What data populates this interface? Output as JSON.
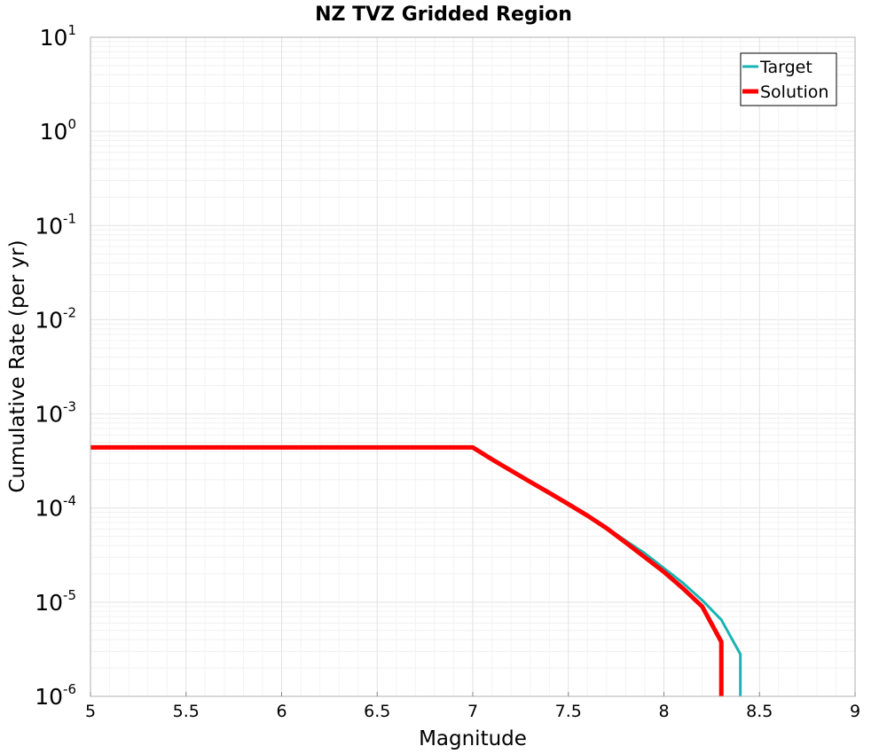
{
  "chart_data": {
    "type": "line",
    "title": "NZ TVZ Gridded Region",
    "xlabel": "Magnitude",
    "ylabel": "Cumulative Rate (per yr)",
    "xlim": [
      5,
      9
    ],
    "ylim": [
      1e-06,
      10
    ],
    "yscale": "log",
    "xticks": [
      "5",
      "5.5",
      "6",
      "6.5",
      "7",
      "7.5",
      "8",
      "8.5",
      "9"
    ],
    "yticks": [
      {
        "base": "10",
        "exp": "1",
        "value": 10
      },
      {
        "base": "10",
        "exp": "0",
        "value": 1
      },
      {
        "base": "10",
        "exp": "-1",
        "value": 0.1
      },
      {
        "base": "10",
        "exp": "-2",
        "value": 0.01
      },
      {
        "base": "10",
        "exp": "-3",
        "value": 0.001
      },
      {
        "base": "10",
        "exp": "-4",
        "value": 0.0001
      },
      {
        "base": "10",
        "exp": "-5",
        "value": 1e-05
      },
      {
        "base": "10",
        "exp": "-6",
        "value": 1e-06
      }
    ],
    "grid": true,
    "legend_position": "top-right",
    "series": [
      {
        "name": "Target",
        "color": "#1ab3b3",
        "x": [
          5.0,
          7.0,
          7.1,
          7.2,
          7.3,
          7.4,
          7.5,
          7.6,
          7.7,
          7.8,
          7.9,
          8.0,
          8.1,
          8.2,
          8.3,
          8.4,
          8.4
        ],
        "y": [
          0.00044,
          0.00044,
          0.00033,
          0.00025,
          0.00019,
          0.000145,
          0.00011,
          8.3e-05,
          6.2e-05,
          4.5e-05,
          3.3e-05,
          2.3e-05,
          1.6e-05,
          1.05e-05,
          6.5e-06,
          2.8e-06,
          1e-06
        ]
      },
      {
        "name": "Solution",
        "color": "#ff0000",
        "x": [
          5.0,
          7.0,
          7.1,
          7.2,
          7.3,
          7.4,
          7.5,
          7.6,
          7.7,
          7.8,
          7.9,
          8.0,
          8.1,
          8.2,
          8.3,
          8.3
        ],
        "y": [
          0.00044,
          0.00044,
          0.00033,
          0.00025,
          0.00019,
          0.000145,
          0.00011,
          8.3e-05,
          6.1e-05,
          4.3e-05,
          3e-05,
          2.1e-05,
          1.4e-05,
          9e-06,
          3.8e-06,
          1e-06
        ]
      }
    ]
  }
}
